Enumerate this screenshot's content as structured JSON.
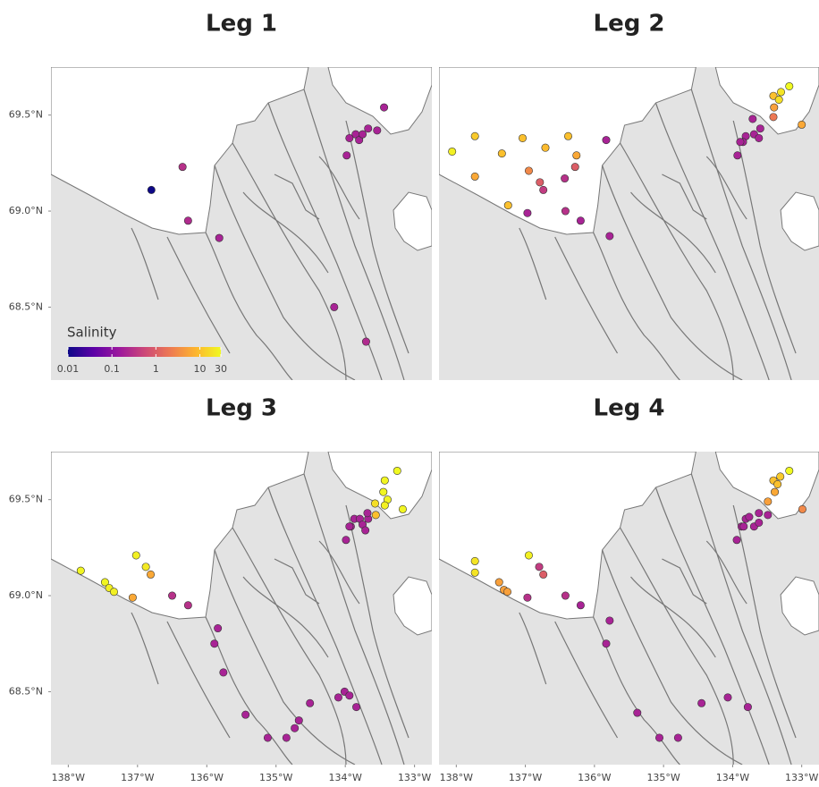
{
  "chart_data": [
    {
      "type": "scatter",
      "title": "Leg 1",
      "xlim": [
        -138.25,
        -132.75
      ],
      "ylim": [
        68.12,
        69.75
      ],
      "yticks": [
        {
          "value": 69.5,
          "label": "69.5°N"
        },
        {
          "value": 69.0,
          "label": "69.0°N"
        },
        {
          "value": 68.5,
          "label": "68.5°N"
        }
      ],
      "colorbar": {
        "title": "Salinity",
        "lim": [
          0.01,
          30
        ],
        "log": true,
        "ticks": [
          0.01,
          0.1,
          1,
          10,
          30
        ],
        "colors": [
          "#0d0887",
          "#5c01a6",
          "#9c179e",
          "#cc4778",
          "#ed7953",
          "#fdb42f",
          "#f0f921"
        ]
      },
      "x": [
        -133.44,
        -133.67,
        -133.54,
        -133.85,
        -133.94,
        -133.8,
        -133.75,
        -133.98,
        -136.35,
        -136.27,
        -135.82,
        -134.16,
        -133.7,
        -136.8
      ],
      "y": [
        69.54,
        69.43,
        69.42,
        69.4,
        69.38,
        69.37,
        69.4,
        69.29,
        69.23,
        68.95,
        68.86,
        68.5,
        68.32,
        69.11
      ],
      "values": [
        0.2,
        0.2,
        0.2,
        0.2,
        0.2,
        0.2,
        0.2,
        0.2,
        0.3,
        0.25,
        0.2,
        0.2,
        0.25,
        0.01
      ]
    },
    {
      "type": "scatter",
      "title": "Leg 2",
      "xlim": [
        -138.25,
        -132.75
      ],
      "ylim": [
        68.12,
        69.75
      ],
      "x": [
        -138.06,
        -137.73,
        -137.73,
        -137.34,
        -137.04,
        -136.71,
        -136.38,
        -136.26,
        -136.95,
        -136.79,
        -136.74,
        -136.43,
        -136.28,
        -137.25,
        -136.97,
        -136.42,
        -136.2,
        -135.78,
        -135.83,
        -133.71,
        -133.69,
        -133.81,
        -133.6,
        -133.85,
        -133.62,
        -133.89,
        -133.93,
        -133.41,
        -133.3,
        -133.33,
        -133.18,
        -133.4,
        -133.41,
        -133.0
      ],
      "y": [
        69.31,
        69.39,
        69.18,
        69.3,
        69.38,
        69.33,
        69.39,
        69.29,
        69.21,
        69.15,
        69.11,
        69.17,
        69.23,
        69.03,
        68.99,
        69.0,
        68.95,
        68.87,
        69.37,
        69.48,
        69.4,
        69.39,
        69.43,
        69.36,
        69.38,
        69.36,
        69.29,
        69.6,
        69.62,
        69.58,
        69.65,
        69.54,
        69.49,
        69.45
      ],
      "values": [
        25,
        12,
        6,
        10,
        10,
        9,
        10,
        6,
        3,
        1,
        0.4,
        0.3,
        1,
        10,
        0.2,
        0.3,
        0.2,
        0.2,
        0.2,
        0.2,
        0.2,
        0.2,
        0.2,
        0.2,
        0.2,
        0.2,
        0.2,
        10,
        20,
        18,
        30,
        5,
        2,
        6
      ]
    },
    {
      "type": "scatter",
      "title": "Leg 3",
      "xlim": [
        -138.25,
        -132.75
      ],
      "ylim": [
        68.12,
        69.75
      ],
      "xticks": [
        {
          "value": -138,
          "label": "138°W"
        },
        {
          "value": -137,
          "label": "137°W"
        },
        {
          "value": -136,
          "label": "136°W"
        },
        {
          "value": -135,
          "label": "135°W"
        },
        {
          "value": -134,
          "label": "134°W"
        },
        {
          "value": -133,
          "label": "133°W"
        }
      ],
      "yticks": [
        {
          "value": 69.5,
          "label": "69.5°N"
        },
        {
          "value": 69.0,
          "label": "69.0°N"
        },
        {
          "value": 68.5,
          "label": "68.5°N"
        }
      ],
      "x": [
        -137.82,
        -137.47,
        -137.41,
        -137.34,
        -137.02,
        -136.88,
        -136.81,
        -137.07,
        -136.5,
        -136.27,
        -135.84,
        -135.89,
        -135.76,
        -135.44,
        -135.12,
        -134.85,
        -134.73,
        -134.67,
        -134.51,
        -134.1,
        -134.01,
        -133.94,
        -133.84,
        -133.99,
        -133.92,
        -133.87,
        -133.79,
        -133.75,
        -133.94,
        -133.71,
        -133.67,
        -133.68,
        -133.25,
        -133.43,
        -133.45,
        -133.39,
        -133.57,
        -133.43,
        -133.17,
        -133.56
      ],
      "y": [
        69.13,
        69.07,
        69.04,
        69.02,
        69.21,
        69.15,
        69.11,
        68.99,
        69.0,
        68.95,
        68.83,
        68.75,
        68.6,
        68.38,
        68.26,
        68.26,
        68.31,
        68.35,
        68.44,
        68.47,
        68.5,
        68.48,
        68.42,
        69.29,
        69.36,
        69.4,
        69.4,
        69.37,
        69.36,
        69.34,
        69.4,
        69.43,
        69.65,
        69.6,
        69.54,
        69.5,
        69.48,
        69.47,
        69.45,
        69.42
      ],
      "values": [
        28,
        28,
        25,
        25,
        25,
        22,
        6,
        6,
        0.3,
        0.3,
        0.2,
        0.2,
        0.2,
        0.2,
        0.2,
        0.2,
        0.2,
        0.2,
        0.2,
        0.2,
        0.2,
        0.2,
        0.2,
        0.2,
        0.2,
        0.2,
        0.2,
        0.2,
        0.2,
        0.2,
        0.2,
        0.2,
        30,
        28,
        28,
        28,
        18,
        25,
        28,
        10
      ]
    },
    {
      "type": "scatter",
      "title": "Leg 4",
      "xlim": [
        -138.25,
        -132.75
      ],
      "ylim": [
        68.12,
        69.75
      ],
      "xticks": [
        {
          "value": -138,
          "label": "138°W"
        },
        {
          "value": -137,
          "label": "137°W"
        },
        {
          "value": -136,
          "label": "136°W"
        },
        {
          "value": -135,
          "label": "135°W"
        },
        {
          "value": -134,
          "label": "134°W"
        },
        {
          "value": -133,
          "label": "133°W"
        }
      ],
      "x": [
        -137.73,
        -137.73,
        -137.38,
        -137.31,
        -137.26,
        -136.95,
        -136.8,
        -136.74,
        -136.97,
        -136.42,
        -136.2,
        -135.78,
        -135.83,
        -135.38,
        -135.06,
        -134.79,
        -134.45,
        -134.07,
        -133.78,
        -133.94,
        -133.87,
        -133.81,
        -133.76,
        -133.69,
        -133.62,
        -133.62,
        -133.49,
        -133.84,
        -133.18,
        -133.31,
        -133.41,
        -133.35,
        -133.39,
        -133.49,
        -132.99
      ],
      "y": [
        69.18,
        69.12,
        69.07,
        69.03,
        69.02,
        69.21,
        69.15,
        69.11,
        68.99,
        69.0,
        68.95,
        68.87,
        68.75,
        68.39,
        68.26,
        68.26,
        68.44,
        68.47,
        68.42,
        69.29,
        69.36,
        69.4,
        69.41,
        69.36,
        69.43,
        69.38,
        69.42,
        69.36,
        69.65,
        69.62,
        69.6,
        69.58,
        69.54,
        69.49,
        69.45
      ],
      "values": [
        20,
        20,
        5,
        5,
        5,
        25,
        0.4,
        1,
        0.3,
        0.3,
        0.2,
        0.2,
        0.2,
        0.2,
        0.2,
        0.2,
        0.2,
        0.2,
        0.2,
        0.2,
        0.2,
        0.2,
        0.2,
        0.2,
        0.2,
        0.2,
        0.2,
        0.2,
        30,
        12,
        10,
        10,
        6,
        5,
        3
      ]
    }
  ]
}
